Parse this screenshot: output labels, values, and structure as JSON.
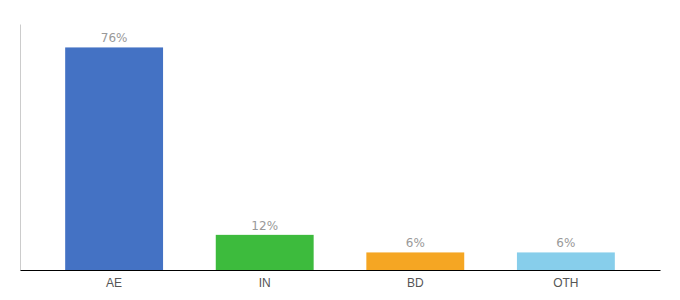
{
  "chart_data": {
    "type": "bar",
    "categories": [
      "AE",
      "IN",
      "BD",
      "OTH"
    ],
    "values": [
      76,
      12,
      6,
      6
    ],
    "colors": [
      "#4472c4",
      "#3dbb3d",
      "#f5a623",
      "#87ceeb"
    ],
    "ylim": [
      0,
      84
    ],
    "data_labels": true,
    "value_labels": [
      "76%",
      "12%",
      "6%",
      "6%"
    ],
    "tick_labels": "x",
    "grid": false
  }
}
